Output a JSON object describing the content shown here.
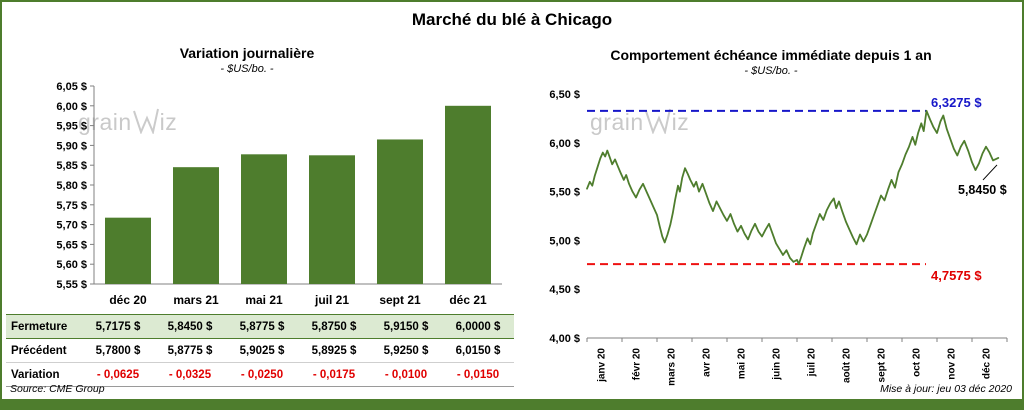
{
  "title": "Marché du blé à Chicago",
  "watermark": {
    "pre": "grain",
    "post": "iz"
  },
  "footer": {
    "source": "Source: CME Group",
    "updated": "Mise à jour: jeu 03 déc 2020"
  },
  "colors": {
    "green": "#4e7d2d",
    "light_green_row": "#dcead2",
    "red": "#e00000",
    "red_line": "#ee1111",
    "blue": "#1717c9",
    "axis_gray": "#808080",
    "watermark_gray": "#c9c9c9",
    "border_green": "#4e7d2d"
  },
  "table": {
    "rows": [
      {
        "label": "Fermeture",
        "style": "close",
        "values": [
          "5,7175  $",
          "5,8450  $",
          "5,8775  $",
          "5,8750  $",
          "5,9150  $",
          "6,0000  $"
        ]
      },
      {
        "label": "Précédent",
        "style": "prev",
        "values": [
          "5,7800  $",
          "5,8775  $",
          "5,9025  $",
          "5,8925  $",
          "5,9250  $",
          "6,0150  $"
        ]
      },
      {
        "label": "Variation",
        "style": "var",
        "values": [
          "- 0,0625",
          "- 0,0325",
          "- 0,0250",
          "- 0,0175",
          "- 0,0100",
          "- 0,0150"
        ]
      }
    ]
  },
  "chart_data": [
    {
      "type": "bar",
      "title": "Variation  journalière",
      "subtitle": "- $US/bo. -",
      "categories": [
        "déc 20",
        "mars 21",
        "mai 21",
        "juil 21",
        "sept 21",
        "déc 21"
      ],
      "values": [
        5.7175,
        5.845,
        5.8775,
        5.875,
        5.915,
        6.0
      ],
      "ylim": [
        5.55,
        6.05
      ],
      "ytick_step": 0.05,
      "grid": false,
      "legend": false
    },
    {
      "type": "line",
      "title": "Comportement  échéance immédiate depuis 1 an",
      "subtitle": "- $US/bo. -",
      "x_categories": [
        "janv 20",
        "févr 20",
        "mars 20",
        "avr 20",
        "mai 20",
        "juin 20",
        "juil 20",
        "août 20",
        "sept 20",
        "oct 20",
        "nov 20",
        "déc 20"
      ],
      "ylim": [
        4.0,
        6.5
      ],
      "ytick_step": 0.5,
      "grid": false,
      "legend": false,
      "max_marker": {
        "value": 6.3275,
        "label": "6,3275 $"
      },
      "min_marker": {
        "value": 4.7575,
        "label": "4,7575 $"
      },
      "last_marker": {
        "value": 5.845,
        "label": "5,8450 $"
      },
      "series": [
        {
          "points": [
            [
              0,
              5.53
            ],
            [
              0.08,
              5.6
            ],
            [
              0.15,
              5.56
            ],
            [
              0.22,
              5.66
            ],
            [
              0.3,
              5.75
            ],
            [
              0.38,
              5.84
            ],
            [
              0.45,
              5.9
            ],
            [
              0.52,
              5.86
            ],
            [
              0.58,
              5.92
            ],
            [
              0.65,
              5.85
            ],
            [
              0.72,
              5.78
            ],
            [
              0.8,
              5.83
            ],
            [
              0.88,
              5.76
            ],
            [
              0.95,
              5.7
            ],
            [
              1.05,
              5.62
            ],
            [
              1.12,
              5.67
            ],
            [
              1.2,
              5.58
            ],
            [
              1.3,
              5.5
            ],
            [
              1.4,
              5.44
            ],
            [
              1.5,
              5.52
            ],
            [
              1.6,
              5.58
            ],
            [
              1.7,
              5.5
            ],
            [
              1.8,
              5.42
            ],
            [
              1.9,
              5.34
            ],
            [
              2.0,
              5.26
            ],
            [
              2.08,
              5.14
            ],
            [
              2.15,
              5.04
            ],
            [
              2.22,
              4.98
            ],
            [
              2.3,
              5.06
            ],
            [
              2.38,
              5.16
            ],
            [
              2.45,
              5.28
            ],
            [
              2.52,
              5.42
            ],
            [
              2.6,
              5.56
            ],
            [
              2.65,
              5.5
            ],
            [
              2.72,
              5.64
            ],
            [
              2.8,
              5.74
            ],
            [
              2.88,
              5.68
            ],
            [
              2.95,
              5.62
            ],
            [
              3.05,
              5.55
            ],
            [
              3.12,
              5.6
            ],
            [
              3.2,
              5.5
            ],
            [
              3.3,
              5.58
            ],
            [
              3.4,
              5.48
            ],
            [
              3.5,
              5.38
            ],
            [
              3.6,
              5.3
            ],
            [
              3.7,
              5.4
            ],
            [
              3.8,
              5.33
            ],
            [
              3.9,
              5.26
            ],
            [
              4.0,
              5.2
            ],
            [
              4.1,
              5.27
            ],
            [
              4.2,
              5.17
            ],
            [
              4.3,
              5.09
            ],
            [
              4.4,
              5.15
            ],
            [
              4.5,
              5.07
            ],
            [
              4.6,
              5.01
            ],
            [
              4.7,
              5.1
            ],
            [
              4.8,
              5.17
            ],
            [
              4.9,
              5.09
            ],
            [
              5.0,
              5.04
            ],
            [
              5.1,
              5.11
            ],
            [
              5.2,
              5.17
            ],
            [
              5.3,
              5.07
            ],
            [
              5.4,
              4.97
            ],
            [
              5.5,
              4.91
            ],
            [
              5.6,
              4.85
            ],
            [
              5.7,
              4.9
            ],
            [
              5.8,
              4.82
            ],
            [
              5.9,
              4.78
            ],
            [
              6.0,
              4.8
            ],
            [
              6.05,
              4.7575
            ],
            [
              6.12,
              4.83
            ],
            [
              6.2,
              4.92
            ],
            [
              6.3,
              5.02
            ],
            [
              6.38,
              4.96
            ],
            [
              6.45,
              5.07
            ],
            [
              6.55,
              5.17
            ],
            [
              6.65,
              5.27
            ],
            [
              6.75,
              5.21
            ],
            [
              6.85,
              5.31
            ],
            [
              6.95,
              5.38
            ],
            [
              7.05,
              5.43
            ],
            [
              7.12,
              5.33
            ],
            [
              7.2,
              5.4
            ],
            [
              7.3,
              5.29
            ],
            [
              7.4,
              5.19
            ],
            [
              7.5,
              5.11
            ],
            [
              7.6,
              5.03
            ],
            [
              7.7,
              4.96
            ],
            [
              7.8,
              5.06
            ],
            [
              7.9,
              4.99
            ],
            [
              8.0,
              5.06
            ],
            [
              8.1,
              5.16
            ],
            [
              8.2,
              5.26
            ],
            [
              8.3,
              5.36
            ],
            [
              8.4,
              5.46
            ],
            [
              8.5,
              5.41
            ],
            [
              8.6,
              5.52
            ],
            [
              8.7,
              5.62
            ],
            [
              8.8,
              5.54
            ],
            [
              8.9,
              5.7
            ],
            [
              9.0,
              5.78
            ],
            [
              9.1,
              5.88
            ],
            [
              9.2,
              5.96
            ],
            [
              9.3,
              6.06
            ],
            [
              9.38,
              5.98
            ],
            [
              9.46,
              6.1
            ],
            [
              9.55,
              6.2
            ],
            [
              9.62,
              6.12
            ],
            [
              9.7,
              6.3275
            ],
            [
              9.8,
              6.24
            ],
            [
              9.9,
              6.16
            ],
            [
              10.0,
              6.1
            ],
            [
              10.1,
              6.22
            ],
            [
              10.18,
              6.28
            ],
            [
              10.28,
              6.14
            ],
            [
              10.38,
              6.04
            ],
            [
              10.48,
              5.94
            ],
            [
              10.58,
              5.87
            ],
            [
              10.68,
              5.96
            ],
            [
              10.78,
              6.02
            ],
            [
              10.9,
              5.91
            ],
            [
              11.0,
              5.8
            ],
            [
              11.1,
              5.72
            ],
            [
              11.2,
              5.79
            ],
            [
              11.3,
              5.89
            ],
            [
              11.4,
              5.96
            ],
            [
              11.5,
              5.9
            ],
            [
              11.6,
              5.82
            ],
            [
              11.75,
              5.845
            ]
          ]
        }
      ]
    }
  ]
}
